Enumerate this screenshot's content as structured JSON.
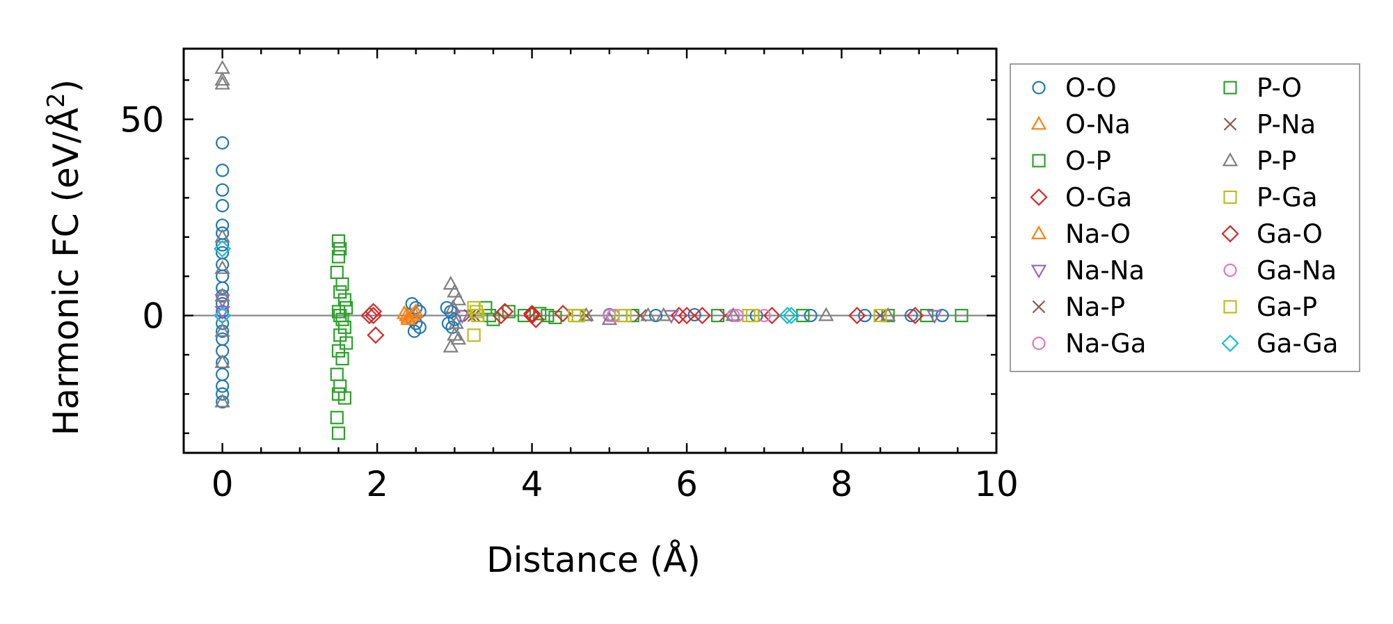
{
  "chart_data": {
    "type": "scatter",
    "title": "",
    "xlabel": "Distance (Å)",
    "ylabel_main": "Harmonic FC (eV/Å",
    "ylabel_sup": "2",
    "ylabel_close": ")",
    "xlim": [
      -0.5,
      10
    ],
    "ylim": [
      -35,
      68
    ],
    "x_ticks": [
      0,
      2,
      4,
      6,
      8,
      10
    ],
    "x_tick_labels": [
      "0",
      "2",
      "4",
      "6",
      "8",
      "10"
    ],
    "y_ticks": [
      0,
      50
    ],
    "y_tick_labels": [
      "0",
      "50"
    ],
    "y_minor_step": 10,
    "x_minor_step": 0.5,
    "zero_line": true,
    "grid": false,
    "legend_position": "outside-right",
    "legend_columns": 2,
    "series": [
      {
        "name": "O-O",
        "marker": "circle",
        "color": "#1f77b4",
        "points": [
          [
            0,
            44
          ],
          [
            0,
            37
          ],
          [
            0,
            32
          ],
          [
            0,
            28
          ],
          [
            0,
            23
          ],
          [
            0,
            21
          ],
          [
            0,
            18
          ],
          [
            0,
            16
          ],
          [
            0,
            13
          ],
          [
            0,
            10
          ],
          [
            0,
            7
          ],
          [
            0,
            5
          ],
          [
            0,
            3
          ],
          [
            0,
            1
          ],
          [
            0,
            -2
          ],
          [
            0,
            -4
          ],
          [
            0,
            -6
          ],
          [
            0,
            -9
          ],
          [
            0,
            -12
          ],
          [
            0,
            -15
          ],
          [
            0,
            -18
          ],
          [
            0,
            -20
          ],
          [
            0,
            -22
          ],
          [
            2.45,
            3
          ],
          [
            2.5,
            2
          ],
          [
            2.55,
            1
          ],
          [
            2.45,
            -1
          ],
          [
            2.5,
            -2
          ],
          [
            2.55,
            -3
          ],
          [
            2.48,
            -4
          ],
          [
            2.9,
            2
          ],
          [
            2.95,
            1
          ],
          [
            3.0,
            -1
          ],
          [
            2.92,
            -2
          ],
          [
            2.97,
            -3
          ],
          [
            5.0,
            0.2
          ],
          [
            5.6,
            0
          ],
          [
            6.1,
            0.2
          ],
          [
            6.9,
            0
          ],
          [
            7.6,
            0
          ],
          [
            8.3,
            0
          ],
          [
            8.9,
            0
          ],
          [
            9.3,
            0
          ]
        ]
      },
      {
        "name": "O-Na",
        "marker": "triangle-up",
        "color": "#ff7f0e",
        "points": [
          [
            2.35,
            0.5
          ],
          [
            2.4,
            -1
          ],
          [
            2.45,
            0
          ],
          [
            2.5,
            1
          ],
          [
            2.4,
            -0.5
          ]
        ]
      },
      {
        "name": "O-P",
        "marker": "square",
        "color": "#2ca02c",
        "points": [
          [
            1.5,
            19
          ],
          [
            1.52,
            17
          ],
          [
            1.5,
            15
          ],
          [
            1.48,
            11
          ],
          [
            1.55,
            8
          ],
          [
            1.52,
            6
          ],
          [
            1.58,
            4
          ],
          [
            1.6,
            2
          ],
          [
            1.5,
            1
          ],
          [
            1.55,
            -1
          ],
          [
            1.58,
            -3
          ],
          [
            1.52,
            -5
          ],
          [
            1.6,
            -7
          ],
          [
            1.5,
            -9
          ],
          [
            1.55,
            -11
          ],
          [
            1.48,
            -15
          ],
          [
            1.52,
            -18
          ],
          [
            1.5,
            -20
          ],
          [
            1.58,
            -21
          ],
          [
            1.48,
            -26
          ],
          [
            1.5,
            -30
          ],
          [
            3.4,
            2
          ],
          [
            3.5,
            -1
          ],
          [
            3.7,
            1
          ],
          [
            3.9,
            0
          ],
          [
            4.1,
            0.5
          ],
          [
            4.3,
            -0.5
          ],
          [
            4.6,
            0
          ],
          [
            5.3,
            0
          ],
          [
            6.4,
            0
          ],
          [
            7.5,
            0
          ],
          [
            8.6,
            0
          ],
          [
            9.1,
            0
          ],
          [
            9.55,
            0
          ]
        ]
      },
      {
        "name": "O-Ga",
        "marker": "diamond",
        "color": "#d62728",
        "points": [
          [
            1.95,
            1
          ],
          [
            1.98,
            -5
          ],
          [
            1.9,
            0
          ],
          [
            3.6,
            0
          ],
          [
            3.65,
            1
          ],
          [
            4.0,
            0
          ],
          [
            4.05,
            -1
          ],
          [
            4.4,
            0.5
          ],
          [
            5.9,
            0
          ],
          [
            6.2,
            0
          ],
          [
            7.1,
            0
          ],
          [
            8.2,
            0
          ],
          [
            8.95,
            0
          ]
        ]
      },
      {
        "name": "Na-O",
        "marker": "triangle-up",
        "color": "#ff7f0e",
        "points": [
          [
            2.38,
            0
          ],
          [
            2.48,
            0.5
          ]
        ]
      },
      {
        "name": "Na-Na",
        "marker": "triangle-down",
        "color": "#9467bd",
        "points": [
          [
            0,
            4
          ],
          [
            0,
            1
          ],
          [
            3.1,
            0
          ],
          [
            5.8,
            0
          ],
          [
            9.2,
            0
          ]
        ]
      },
      {
        "name": "Na-P",
        "marker": "x",
        "color": "#8c564b",
        "points": [
          [
            3.2,
            0
          ],
          [
            4.7,
            0
          ],
          [
            6.5,
            0
          ],
          [
            8.5,
            0
          ]
        ]
      },
      {
        "name": "Na-Ga",
        "marker": "circle",
        "color": "#e377c2",
        "points": [
          [
            0,
            0
          ],
          [
            5.0,
            0
          ],
          [
            6.6,
            0
          ],
          [
            7.0,
            0
          ]
        ]
      },
      {
        "name": "P-O",
        "marker": "square",
        "color": "#2ca02c",
        "points": [
          [
            1.52,
            0
          ],
          [
            3.45,
            0
          ],
          [
            4.2,
            0
          ]
        ]
      },
      {
        "name": "P-Na",
        "marker": "x",
        "color": "#8c564b",
        "points": [
          [
            3.25,
            0
          ],
          [
            5.4,
            0
          ]
        ]
      },
      {
        "name": "P-P",
        "marker": "triangle-up",
        "color": "#7f7f7f",
        "points": [
          [
            0,
            63
          ],
          [
            0,
            60
          ],
          [
            0,
            59
          ],
          [
            0,
            20
          ],
          [
            0,
            12
          ],
          [
            0,
            5
          ],
          [
            0,
            -4
          ],
          [
            0,
            -12
          ],
          [
            0,
            -22
          ],
          [
            2.95,
            8
          ],
          [
            3.0,
            6
          ],
          [
            3.05,
            4
          ],
          [
            2.98,
            2
          ],
          [
            3.02,
            -2
          ],
          [
            3.0,
            -5
          ],
          [
            2.95,
            -8
          ],
          [
            3.05,
            -6
          ],
          [
            4.7,
            0
          ],
          [
            5.0,
            -1
          ],
          [
            5.5,
            0
          ],
          [
            5.7,
            0
          ],
          [
            6.6,
            0
          ],
          [
            7.8,
            0
          ],
          [
            8.6,
            0
          ]
        ]
      },
      {
        "name": "P-Ga",
        "marker": "square",
        "color": "#bcbd22",
        "points": [
          [
            3.25,
            2
          ],
          [
            3.25,
            -5
          ],
          [
            3.3,
            0
          ],
          [
            4.6,
            0
          ],
          [
            5.15,
            0
          ],
          [
            6.8,
            0
          ],
          [
            8.5,
            0
          ]
        ]
      },
      {
        "name": "Ga-O",
        "marker": "diamond",
        "color": "#d62728",
        "points": [
          [
            1.95,
            0
          ],
          [
            4.0,
            0.5
          ],
          [
            6.0,
            0
          ]
        ]
      },
      {
        "name": "Ga-Na",
        "marker": "circle",
        "color": "#e377c2",
        "points": [
          [
            5.05,
            0
          ],
          [
            6.65,
            0
          ]
        ]
      },
      {
        "name": "Ga-P",
        "marker": "square",
        "color": "#bcbd22",
        "points": [
          [
            3.28,
            1
          ],
          [
            4.55,
            0
          ],
          [
            5.2,
            0
          ],
          [
            6.85,
            0
          ]
        ]
      },
      {
        "name": "Ga-Ga",
        "marker": "diamond",
        "color": "#17becf",
        "points": [
          [
            0,
            17
          ],
          [
            0,
            0
          ],
          [
            7.3,
            0
          ],
          [
            7.35,
            0
          ]
        ]
      }
    ]
  }
}
